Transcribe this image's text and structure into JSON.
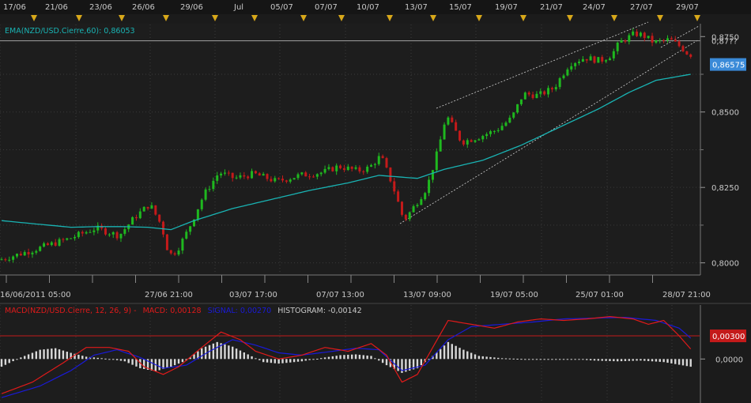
{
  "chart_data": [
    {
      "type": "candlestick",
      "ema_legend": "EMA(NZD/USD.Cierre,60): 0,86053",
      "top_dates": [
        "17/06",
        "21/06",
        "23/06",
        "26/06",
        "29/06",
        "Jul",
        "05/07",
        "07/07",
        "10/07",
        "13/07",
        "15/07",
        "19/07",
        "21/07",
        "24/07",
        "27/07",
        "29/07"
      ],
      "bottom_dates": [
        "16/06/2011 05:00",
        "27/06 21:00",
        "03/07 17:00",
        "07/07 13:00",
        "13/07 09:00",
        "19/07 05:00",
        "25/07 01:00",
        "28/07 21:00"
      ],
      "y_ticks": [
        "0,8000",
        "0,8250",
        "0,8500",
        "0,8750"
      ],
      "ylim": [
        0.7965,
        0.879
      ],
      "ref_line": 0.8736,
      "ref_label": "0,87??",
      "last_price_label": "0,86575",
      "last_price": 0.86575,
      "colors": {
        "up": "#1fb81f",
        "down": "#c41a1a",
        "ema": "#19b3b3",
        "price_box": "#3a8ad8",
        "trend": "#d0d0d0",
        "marker": "#d8a81a"
      },
      "price_path": [
        [
          0,
          0.801
        ],
        [
          8,
          0.804
        ],
        [
          18,
          0.808
        ],
        [
          25,
          0.8115
        ],
        [
          31,
          0.809
        ],
        [
          35,
          0.815
        ],
        [
          39,
          0.8195
        ],
        [
          42,
          0.8125
        ],
        [
          44,
          0.8025
        ],
        [
          46,
          0.804
        ],
        [
          49,
          0.811
        ],
        [
          53,
          0.8225
        ],
        [
          57,
          0.83
        ],
        [
          61,
          0.828
        ],
        [
          66,
          0.8295
        ],
        [
          72,
          0.827
        ],
        [
          78,
          0.829
        ],
        [
          84,
          0.83
        ],
        [
          88,
          0.832
        ],
        [
          93,
          0.8305
        ],
        [
          96,
          0.8315
        ],
        [
          99,
          0.8355
        ],
        [
          102,
          0.826
        ],
        [
          105,
          0.814
        ],
        [
          107,
          0.8175
        ],
        [
          111,
          0.825
        ],
        [
          114,
          0.838
        ],
        [
          116,
          0.849
        ],
        [
          120,
          0.84
        ],
        [
          125,
          0.842
        ],
        [
          129,
          0.844
        ],
        [
          133,
          0.848
        ],
        [
          136,
          0.856
        ],
        [
          140,
          0.8555
        ],
        [
          144,
          0.858
        ],
        [
          148,
          0.866
        ],
        [
          152,
          0.868
        ],
        [
          156,
          0.867
        ],
        [
          159,
          0.869
        ],
        [
          161,
          0.873
        ],
        [
          165,
          0.876
        ],
        [
          167,
          0.8755
        ],
        [
          170,
          0.873
        ],
        [
          174,
          0.874
        ],
        [
          177,
          0.8715
        ],
        [
          179,
          0.869
        ]
      ],
      "ema_path": [
        [
          0,
          0.814
        ],
        [
          8,
          0.813
        ],
        [
          18,
          0.8118
        ],
        [
          25,
          0.812
        ],
        [
          31,
          0.812
        ],
        [
          38,
          0.8118
        ],
        [
          44,
          0.811
        ],
        [
          50,
          0.814
        ],
        [
          60,
          0.818
        ],
        [
          70,
          0.821
        ],
        [
          80,
          0.824
        ],
        [
          90,
          0.8265
        ],
        [
          98,
          0.829
        ],
        [
          103,
          0.8285
        ],
        [
          108,
          0.828
        ],
        [
          115,
          0.831
        ],
        [
          125,
          0.834
        ],
        [
          135,
          0.839
        ],
        [
          145,
          0.845
        ],
        [
          155,
          0.851
        ],
        [
          163,
          0.8565
        ],
        [
          170,
          0.8605
        ],
        [
          179,
          0.8625
        ]
      ]
    },
    {
      "type": "macd",
      "legend_name": "MACD(NZD/USD.Cierre, 12, 26, 9) -",
      "legend_macd": "MACD: 0,00128",
      "legend_signal": "SIGNAL: 0,00270",
      "legend_hist": "HISTOGRAM: -0,00142",
      "y_ticks": [
        "0,00300",
        "0,0000"
      ],
      "ylim": [
        -0.0055,
        0.007
      ],
      "ref_line": 0.003,
      "colors": {
        "macd": "#e01a1a",
        "signal": "#1a1ad8",
        "hist": "#d8d8d8",
        "ref": "#c41a1a",
        "box": "#c41a1a"
      },
      "macd_path": [
        [
          0,
          -0.0045
        ],
        [
          8,
          -0.003
        ],
        [
          16,
          -0.0005
        ],
        [
          22,
          0.0015
        ],
        [
          28,
          0.0015
        ],
        [
          33,
          0.001
        ],
        [
          37,
          -0.001
        ],
        [
          42,
          -0.002
        ],
        [
          46,
          -0.001
        ],
        [
          52,
          0.0015
        ],
        [
          57,
          0.0035
        ],
        [
          62,
          0.0025
        ],
        [
          66,
          0.001
        ],
        [
          72,
          0.0
        ],
        [
          78,
          0.0005
        ],
        [
          84,
          0.0015
        ],
        [
          90,
          0.001
        ],
        [
          96,
          0.002
        ],
        [
          100,
          0.0005
        ],
        [
          104,
          -0.003
        ],
        [
          108,
          -0.002
        ],
        [
          112,
          0.0015
        ],
        [
          116,
          0.005
        ],
        [
          122,
          0.0045
        ],
        [
          128,
          0.004
        ],
        [
          134,
          0.0048
        ],
        [
          140,
          0.0052
        ],
        [
          146,
          0.005
        ],
        [
          152,
          0.0052
        ],
        [
          158,
          0.0055
        ],
        [
          164,
          0.0052
        ],
        [
          168,
          0.0045
        ],
        [
          172,
          0.005
        ],
        [
          176,
          0.003
        ],
        [
          179,
          0.0013
        ]
      ],
      "signal_path": [
        [
          0,
          -0.005
        ],
        [
          10,
          -0.0035
        ],
        [
          18,
          -0.0015
        ],
        [
          24,
          0.0005
        ],
        [
          30,
          0.0012
        ],
        [
          36,
          0.0002
        ],
        [
          42,
          -0.0012
        ],
        [
          48,
          -0.0008
        ],
        [
          54,
          0.001
        ],
        [
          60,
          0.0025
        ],
        [
          66,
          0.0018
        ],
        [
          72,
          0.0008
        ],
        [
          78,
          0.0005
        ],
        [
          86,
          0.001
        ],
        [
          92,
          0.0014
        ],
        [
          98,
          0.0012
        ],
        [
          104,
          -0.0015
        ],
        [
          110,
          -0.0008
        ],
        [
          116,
          0.0025
        ],
        [
          122,
          0.0042
        ],
        [
          130,
          0.0045
        ],
        [
          138,
          0.0048
        ],
        [
          146,
          0.0052
        ],
        [
          154,
          0.0053
        ],
        [
          162,
          0.0054
        ],
        [
          170,
          0.005
        ],
        [
          176,
          0.004
        ],
        [
          179,
          0.0027
        ]
      ],
      "hist_path": [
        [
          0,
          -0.001
        ],
        [
          5,
          0.0002
        ],
        [
          10,
          0.0012
        ],
        [
          14,
          0.0014
        ],
        [
          18,
          0.0008
        ],
        [
          22,
          0.0003
        ],
        [
          28,
          0.0
        ],
        [
          32,
          -0.0003
        ],
        [
          36,
          -0.0012
        ],
        [
          40,
          -0.0016
        ],
        [
          44,
          -0.001
        ],
        [
          48,
          -0.0002
        ],
        [
          52,
          0.0014
        ],
        [
          56,
          0.0022
        ],
        [
          60,
          0.0016
        ],
        [
          64,
          0.0006
        ],
        [
          68,
          -0.0004
        ],
        [
          72,
          -0.0006
        ],
        [
          78,
          -0.0003
        ],
        [
          84,
          0.0002
        ],
        [
          88,
          0.0005
        ],
        [
          92,
          0.0006
        ],
        [
          96,
          0.0004
        ],
        [
          100,
          -0.0008
        ],
        [
          104,
          -0.0018
        ],
        [
          108,
          -0.0012
        ],
        [
          112,
          0.0004
        ],
        [
          116,
          0.0022
        ],
        [
          120,
          0.0012
        ],
        [
          124,
          0.0004
        ],
        [
          130,
          0.0001
        ],
        [
          136,
          0.0
        ],
        [
          142,
          -0.0001
        ],
        [
          148,
          0.0
        ],
        [
          154,
          -0.0002
        ],
        [
          160,
          -0.0003
        ],
        [
          166,
          -0.0002
        ],
        [
          172,
          -0.0004
        ],
        [
          179,
          -0.001
        ]
      ]
    }
  ]
}
